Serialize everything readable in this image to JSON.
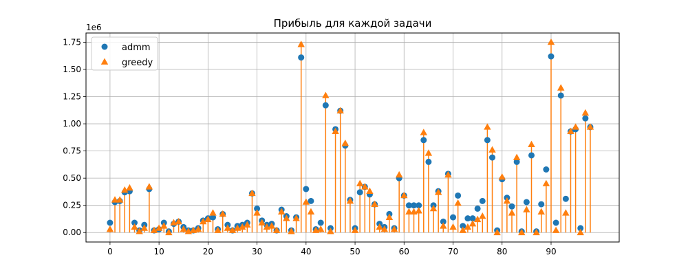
{
  "chart_data": {
    "type": "scatter",
    "title": "Прибыль для каждой задачи",
    "xlabel": "",
    "ylabel": "",
    "y_offset_label": "1e6",
    "y_scale": 1000000,
    "xlim": [
      -4.9,
      103.9
    ],
    "ylim": [
      -0.087,
      1.835
    ],
    "x_ticks": [
      0,
      10,
      20,
      30,
      40,
      50,
      60,
      70,
      80,
      90
    ],
    "x_tick_labels": [
      "0",
      "10",
      "20",
      "30",
      "40",
      "50",
      "60",
      "70",
      "80",
      "90"
    ],
    "y_ticks": [
      0.0,
      0.25,
      0.5,
      0.75,
      1.0,
      1.25,
      1.5,
      1.75
    ],
    "y_tick_labels": [
      "0.00",
      "0.25",
      "0.50",
      "0.75",
      "1.00",
      "1.25",
      "1.50",
      "1.75"
    ],
    "grid": true,
    "legend_position": "top-left",
    "stems": "greedy",
    "series": [
      {
        "name": "admm",
        "marker": "circle",
        "color": "#1f77b4",
        "values": [
          0.09,
          0.28,
          0.29,
          0.37,
          0.38,
          0.09,
          0.02,
          0.07,
          0.4,
          0.02,
          0.03,
          0.09,
          0.01,
          0.08,
          0.1,
          0.05,
          0.02,
          0.02,
          0.04,
          0.11,
          0.13,
          0.14,
          0.03,
          0.17,
          0.07,
          0.02,
          0.06,
          0.07,
          0.09,
          0.36,
          0.22,
          0.11,
          0.07,
          0.08,
          0.02,
          0.21,
          0.15,
          0.02,
          0.14,
          1.61,
          0.4,
          0.29,
          0.03,
          0.09,
          1.17,
          0.04,
          0.95,
          1.12,
          0.8,
          0.3,
          0.04,
          0.37,
          0.42,
          0.35,
          0.26,
          0.08,
          0.05,
          0.17,
          0.04,
          0.5,
          0.34,
          0.25,
          0.25,
          0.25,
          0.85,
          0.65,
          0.25,
          0.38,
          0.1,
          0.54,
          0.14,
          0.34,
          0.06,
          0.13,
          0.13,
          0.22,
          0.29,
          0.85,
          0.69,
          0.02,
          0.49,
          0.32,
          0.24,
          0.65,
          0.01,
          0.28,
          0.71,
          0.01,
          0.26,
          0.58,
          1.62,
          0.09,
          1.26,
          0.31,
          0.93,
          0.95,
          0.04,
          1.05,
          0.97
        ]
      },
      {
        "name": "greedy",
        "marker": "triangle",
        "color": "#ff7f0e",
        "values": [
          0.03,
          0.3,
          0.3,
          0.39,
          0.41,
          0.05,
          0.01,
          0.04,
          0.42,
          0.02,
          0.04,
          0.06,
          0.0,
          0.09,
          0.1,
          0.03,
          0.01,
          0.02,
          0.03,
          0.1,
          0.12,
          0.18,
          0.02,
          0.17,
          0.04,
          0.02,
          0.04,
          0.05,
          0.07,
          0.36,
          0.18,
          0.09,
          0.05,
          0.06,
          0.02,
          0.19,
          0.13,
          0.01,
          0.13,
          1.73,
          0.28,
          0.19,
          0.02,
          0.03,
          1.26,
          0.01,
          0.93,
          1.12,
          0.82,
          0.29,
          0.02,
          0.45,
          0.42,
          0.38,
          0.26,
          0.05,
          0.03,
          0.14,
          0.03,
          0.53,
          0.34,
          0.19,
          0.19,
          0.2,
          0.92,
          0.73,
          0.22,
          0.37,
          0.06,
          0.53,
          0.05,
          0.27,
          0.02,
          0.05,
          0.08,
          0.12,
          0.15,
          0.97,
          0.76,
          0.0,
          0.51,
          0.29,
          0.18,
          0.69,
          0.0,
          0.21,
          0.81,
          0.0,
          0.19,
          0.45,
          1.75,
          0.02,
          1.33,
          0.18,
          0.93,
          0.97,
          0.0,
          1.1,
          0.97
        ]
      }
    ]
  }
}
